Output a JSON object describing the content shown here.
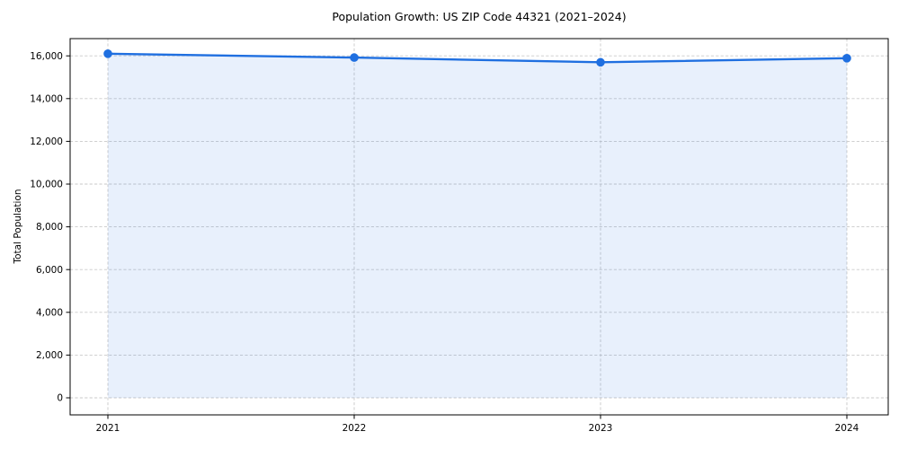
{
  "chart_data": {
    "type": "line",
    "title": "Population Growth: US ZIP Code 44321 (2021–2024)",
    "xlabel": "",
    "ylabel": "Total Population",
    "categories": [
      "2021",
      "2022",
      "2023",
      "2024"
    ],
    "series": [
      {
        "name": "Total Population",
        "values": [
          16100,
          15920,
          15700,
          15890
        ]
      }
    ],
    "yticks": [
      0,
      2000,
      4000,
      6000,
      8000,
      10000,
      12000,
      14000,
      16000
    ],
    "ytick_labels": [
      "0",
      "2,000",
      "4,000",
      "6,000",
      "8,000",
      "10,000",
      "12,000",
      "14,000",
      "16,000"
    ],
    "ylim": [
      -800,
      16800
    ],
    "grid": "on",
    "grid_style": "dashed",
    "legend_position": "none",
    "area_fill_to_zero": true,
    "area_opacity": 0.1,
    "colors": {
      "line": "#1f6fe0",
      "marker": "#1f6fe0",
      "area_base": "#1f6fe0",
      "area_rendered": "#e9f0fb",
      "grid": "#c9c9c9",
      "axis": "#000000",
      "text": "#000000",
      "background": "#ffffff"
    }
  }
}
